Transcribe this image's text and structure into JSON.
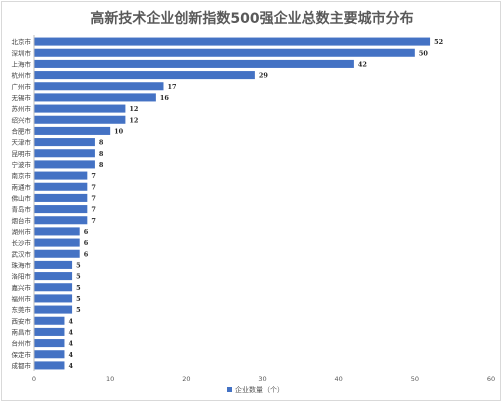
{
  "chart_data": {
    "type": "bar",
    "orientation": "horizontal",
    "title": "高新技术企业创新指数500强企业总数主要城市分布",
    "categories": [
      "北京市",
      "深圳市",
      "上海市",
      "杭州市",
      "广州市",
      "无锡市",
      "苏州市",
      "绍兴市",
      "合肥市",
      "天津市",
      "昆明市",
      "宁波市",
      "南京市",
      "南通市",
      "佛山市",
      "青岛市",
      "烟台市",
      "湖州市",
      "长沙市",
      "武汉市",
      "珠海市",
      "洛阳市",
      "嘉兴市",
      "福州市",
      "东莞市",
      "西安市",
      "南昌市",
      "台州市",
      "保定市",
      "成都市"
    ],
    "series": [
      {
        "name": "企业数量（个）",
        "values": [
          52,
          50,
          42,
          29,
          17,
          16,
          12,
          12,
          10,
          8,
          8,
          8,
          7,
          7,
          7,
          7,
          7,
          6,
          6,
          6,
          5,
          5,
          5,
          5,
          5,
          4,
          4,
          4,
          4,
          4
        ]
      }
    ],
    "xlim": [
      0,
      60
    ],
    "xticks": [
      0,
      10,
      20,
      30,
      40,
      50,
      60
    ],
    "grid": false,
    "legend_position": "bottom",
    "data_labels": true,
    "colors": {
      "bar": "#4472c4",
      "axis": "#bfbfbf"
    }
  }
}
